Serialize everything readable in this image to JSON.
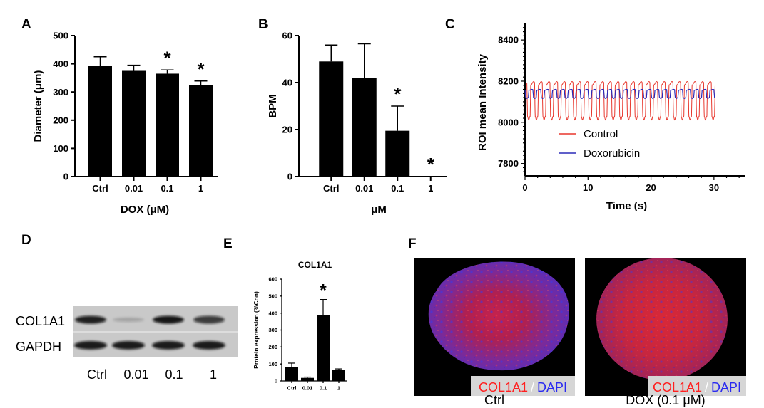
{
  "panel_letters": {
    "a": "A",
    "b": "B",
    "c": "C",
    "d": "D",
    "e": "E",
    "f": "F"
  },
  "chart_data": [
    {
      "id": "A",
      "type": "bar",
      "categories": [
        "Ctrl",
        "0.01",
        "0.1",
        "1"
      ],
      "values": [
        392,
        375,
        365,
        325
      ],
      "errors": [
        33,
        20,
        13,
        14
      ],
      "significant": [
        false,
        false,
        true,
        true
      ],
      "ylim": [
        0,
        500
      ],
      "yticks": [
        "0",
        "100",
        "200",
        "300",
        "400",
        "500"
      ],
      "xlabel": "DOX (μM)",
      "ylabel": "Diameter (μm)",
      "sig_marker": "*"
    },
    {
      "id": "B",
      "type": "bar",
      "categories": [
        "Ctrl",
        "0.01",
        "0.1",
        "1"
      ],
      "values": [
        49,
        42,
        19.5,
        0
      ],
      "errors": [
        7,
        14.5,
        10.5,
        0
      ],
      "significant": [
        false,
        false,
        true,
        true
      ],
      "ylim": [
        0,
        60
      ],
      "yticks": [
        "0",
        "20",
        "40",
        "60"
      ],
      "xlabel": "μM",
      "ylabel": "BPM",
      "sig_marker": "*"
    },
    {
      "id": "C",
      "type": "line",
      "xlabel": "Time (s)",
      "ylabel": "ROI mean Intensity",
      "xlim": [
        0,
        35
      ],
      "ylim": [
        7740,
        8480
      ],
      "xticks": [
        "0",
        "10",
        "20",
        "30"
      ],
      "yticks": [
        "7800",
        "8000",
        "8200",
        "8400"
      ],
      "series": [
        {
          "name": "Control",
          "color": "#e8372d",
          "baseline": 8190,
          "trough": 8020,
          "period": 1.22,
          "start": 0.3,
          "end": 30.2
        },
        {
          "name": "Doxorubicin",
          "color": "#2b2bb8",
          "baseline": 8158,
          "trough": 8118,
          "period": 1.25,
          "start": 0.0,
          "end": 30.2
        }
      ]
    },
    {
      "id": "E",
      "type": "bar",
      "title": "COL1A1",
      "categories": [
        "Ctrl",
        "0.01",
        "0.1",
        "1"
      ],
      "values": [
        80,
        18,
        390,
        63
      ],
      "errors": [
        25,
        5,
        90,
        8
      ],
      "significant": [
        false,
        false,
        true,
        false
      ],
      "ylim": [
        0,
        600
      ],
      "yticks": [
        "0",
        "100",
        "200",
        "300",
        "400",
        "500",
        "600"
      ],
      "ylabel": "Protein expression (%Con)",
      "sig_marker": "*"
    }
  ],
  "western_blot": {
    "bands": [
      "COL1A1",
      "GAPDH"
    ],
    "lanes": [
      "Ctrl",
      "0.01",
      "0.1",
      "1"
    ],
    "col1a1_intensity": [
      0.9,
      0.2,
      0.95,
      0.75
    ]
  },
  "fluorescence": {
    "stain_label": "COL1A1",
    "separator": "/",
    "counter_label": "DAPI",
    "stain_color": "#ff2020",
    "counter_color": "#2a2af0",
    "captions": [
      "Ctrl",
      "DOX (0.1 μM)"
    ]
  }
}
